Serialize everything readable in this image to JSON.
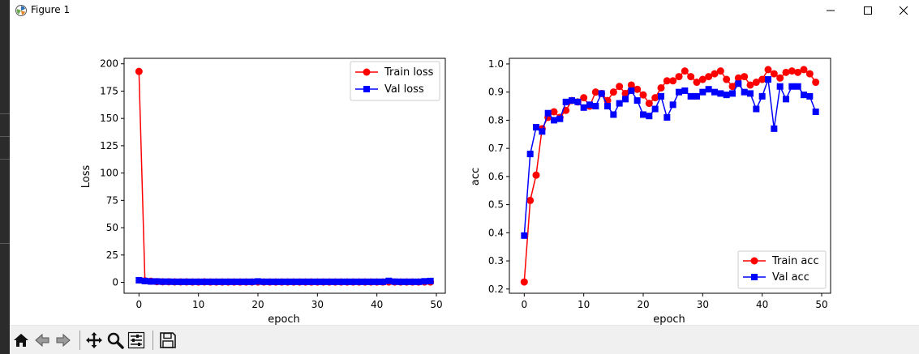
{
  "window": {
    "title": "Figure 1"
  },
  "window_controls": [
    "minimize",
    "maximize",
    "close"
  ],
  "toolbar": [
    "home-icon",
    "back-icon",
    "forward-icon",
    "pan-icon",
    "zoom-icon",
    "configure-subplots-icon",
    "save-icon"
  ],
  "chart_data": [
    {
      "type": "line",
      "title": "",
      "xlabel": "epoch",
      "ylabel": "Loss",
      "xlim": [
        -2.5,
        51.5
      ],
      "ylim": [
        -10,
        205
      ],
      "xticks": [
        0,
        10,
        20,
        30,
        40,
        50
      ],
      "yticks": [
        0,
        25,
        50,
        75,
        100,
        125,
        150,
        175,
        200
      ],
      "legend": "top-right",
      "grid": false,
      "series": [
        {
          "name": "Train loss",
          "color": "#ff0000",
          "marker": "circle",
          "x": [
            0,
            1,
            2,
            3,
            4,
            5,
            6,
            7,
            8,
            9,
            10,
            11,
            12,
            13,
            14,
            15,
            16,
            17,
            18,
            19,
            20,
            21,
            22,
            23,
            24,
            25,
            26,
            27,
            28,
            29,
            30,
            31,
            32,
            33,
            34,
            35,
            36,
            37,
            38,
            39,
            40,
            41,
            42,
            43,
            44,
            45,
            46,
            47,
            48,
            49
          ],
          "values": [
            193,
            1.4,
            1.0,
            0.6,
            0.5,
            0.5,
            0.4,
            0.4,
            0.4,
            0.3,
            0.3,
            0.4,
            0.3,
            0.3,
            0.3,
            0.3,
            0.3,
            0.3,
            0.3,
            0.3,
            0.3,
            0.3,
            0.3,
            0.3,
            0.3,
            0.3,
            0.3,
            0.3,
            0.3,
            0.3,
            0.3,
            0.3,
            0.3,
            0.3,
            0.3,
            0.3,
            0.3,
            0.3,
            0.3,
            0.3,
            0.3,
            0.3,
            0.3,
            0.3,
            0.3,
            0.3,
            0.3,
            0.3,
            0.3,
            0.3
          ]
        },
        {
          "name": "Val loss",
          "color": "#0000ff",
          "marker": "square",
          "x": [
            0,
            1,
            2,
            3,
            4,
            5,
            6,
            7,
            8,
            9,
            10,
            11,
            12,
            13,
            14,
            15,
            16,
            17,
            18,
            19,
            20,
            21,
            22,
            23,
            24,
            25,
            26,
            27,
            28,
            29,
            30,
            31,
            32,
            33,
            34,
            35,
            36,
            37,
            38,
            39,
            40,
            41,
            42,
            43,
            44,
            45,
            46,
            47,
            48,
            49
          ],
          "values": [
            1.9,
            1.2,
            0.8,
            0.8,
            0.6,
            0.6,
            0.5,
            0.5,
            0.5,
            0.5,
            0.5,
            0.5,
            0.5,
            0.5,
            0.5,
            0.5,
            0.5,
            0.5,
            0.5,
            0.5,
            0.8,
            0.5,
            0.5,
            0.5,
            0.5,
            0.5,
            0.5,
            0.5,
            0.5,
            0.5,
            0.5,
            0.5,
            0.5,
            0.5,
            0.5,
            0.5,
            0.5,
            0.5,
            0.5,
            0.5,
            0.5,
            0.5,
            1.3,
            0.6,
            0.5,
            0.5,
            0.5,
            0.5,
            0.9,
            1.2
          ]
        }
      ]
    },
    {
      "type": "line",
      "title": "",
      "xlabel": "epoch",
      "ylabel": "acc",
      "xlim": [
        -2.5,
        51.5
      ],
      "ylim": [
        0.185,
        1.02
      ],
      "xticks": [
        0,
        10,
        20,
        30,
        40,
        50
      ],
      "yticks": [
        0.2,
        0.3,
        0.4,
        0.5,
        0.6,
        0.7,
        0.8,
        0.9,
        1.0
      ],
      "legend": "bottom-right",
      "grid": false,
      "series": [
        {
          "name": "Train acc",
          "color": "#ff0000",
          "marker": "circle",
          "x": [
            0,
            1,
            2,
            3,
            4,
            5,
            6,
            7,
            8,
            9,
            10,
            11,
            12,
            13,
            14,
            15,
            16,
            17,
            18,
            19,
            20,
            21,
            22,
            23,
            24,
            25,
            26,
            27,
            28,
            29,
            30,
            31,
            32,
            33,
            34,
            35,
            36,
            37,
            38,
            39,
            40,
            41,
            42,
            43,
            44,
            45,
            46,
            47,
            48,
            49
          ],
          "values": [
            0.225,
            0.515,
            0.605,
            0.77,
            0.81,
            0.83,
            0.81,
            0.835,
            0.87,
            0.865,
            0.88,
            0.85,
            0.9,
            0.895,
            0.87,
            0.9,
            0.92,
            0.895,
            0.925,
            0.91,
            0.89,
            0.86,
            0.88,
            0.915,
            0.94,
            0.94,
            0.955,
            0.975,
            0.955,
            0.935,
            0.945,
            0.955,
            0.965,
            0.975,
            0.945,
            0.92,
            0.95,
            0.955,
            0.925,
            0.935,
            0.945,
            0.98,
            0.965,
            0.95,
            0.97,
            0.975,
            0.97,
            0.98,
            0.965,
            0.935
          ]
        },
        {
          "name": "Val acc",
          "color": "#0000ff",
          "marker": "square",
          "x": [
            0,
            1,
            2,
            3,
            4,
            5,
            6,
            7,
            8,
            9,
            10,
            11,
            12,
            13,
            14,
            15,
            16,
            17,
            18,
            19,
            20,
            21,
            22,
            23,
            24,
            25,
            26,
            27,
            28,
            29,
            30,
            31,
            32,
            33,
            34,
            35,
            36,
            37,
            38,
            39,
            40,
            41,
            42,
            43,
            44,
            45,
            46,
            47,
            48,
            49
          ],
          "values": [
            0.39,
            0.68,
            0.775,
            0.76,
            0.825,
            0.8,
            0.805,
            0.865,
            0.87,
            0.865,
            0.845,
            0.855,
            0.85,
            0.895,
            0.85,
            0.82,
            0.86,
            0.875,
            0.905,
            0.87,
            0.82,
            0.815,
            0.84,
            0.885,
            0.81,
            0.855,
            0.9,
            0.905,
            0.885,
            0.885,
            0.9,
            0.91,
            0.9,
            0.895,
            0.89,
            0.895,
            0.93,
            0.9,
            0.895,
            0.84,
            0.885,
            0.945,
            0.77,
            0.92,
            0.875,
            0.92,
            0.92,
            0.89,
            0.885,
            0.83
          ]
        }
      ]
    }
  ]
}
